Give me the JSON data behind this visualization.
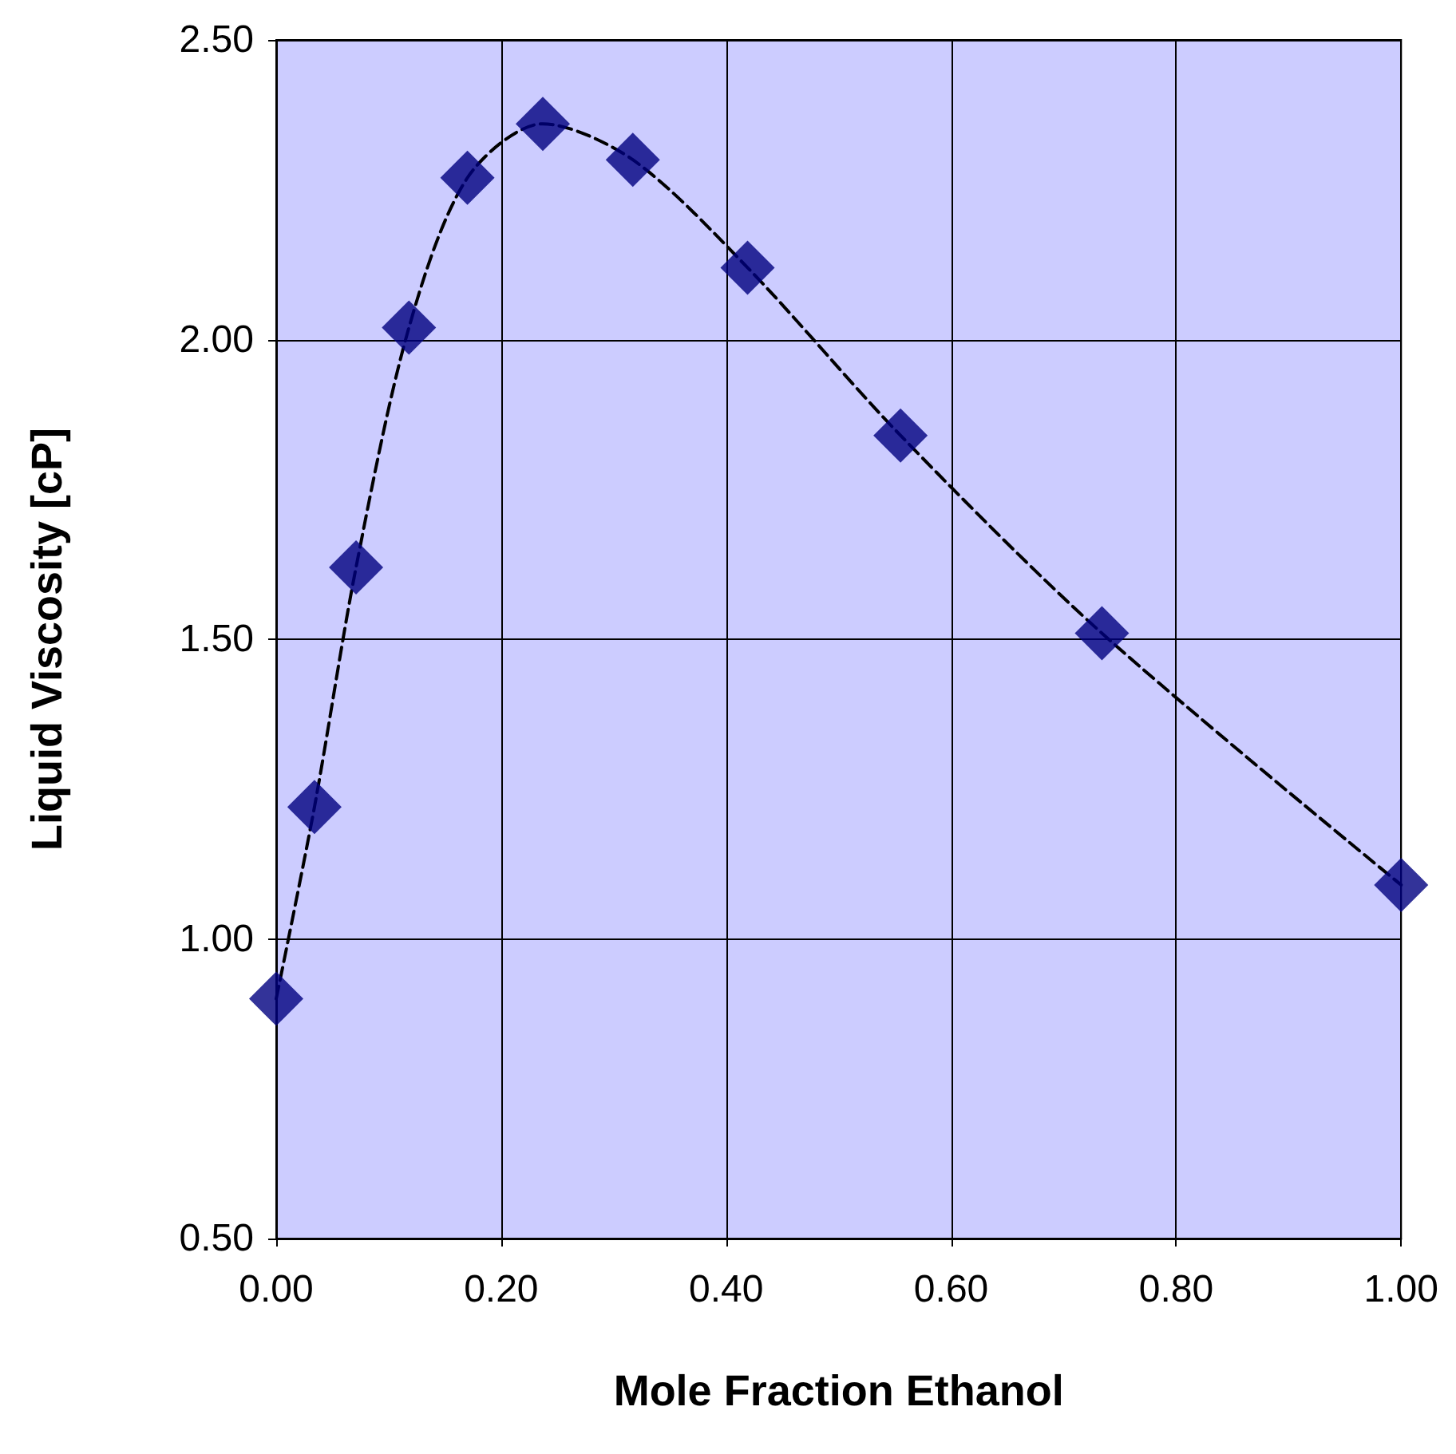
{
  "chart_data": {
    "type": "scatter",
    "xlabel": "Mole Fraction Ethanol",
    "ylabel": "Liquid Viscosity [cP]",
    "xlim": [
      0,
      1
    ],
    "xticks": [
      {
        "value": 0,
        "label": "0.00"
      },
      {
        "value": 0.2,
        "label": "0.20"
      },
      {
        "value": 0.4,
        "label": "0.40"
      },
      {
        "value": 0.6,
        "label": "0.60"
      },
      {
        "value": 0.8,
        "label": "0.80"
      },
      {
        "value": 1,
        "label": "1.00"
      }
    ],
    "ylim": [
      0.5,
      2.5
    ],
    "yticks": [
      {
        "value": 0.5,
        "label": "0.50"
      },
      {
        "value": 1,
        "label": "1.00"
      },
      {
        "value": 1.5,
        "label": "1.50"
      },
      {
        "value": 2,
        "label": "2.00"
      },
      {
        "value": 2.5,
        "label": "2.50"
      }
    ],
    "grid": true,
    "series": [
      {
        "marker": "diamond",
        "color": "#000080",
        "x": [
          0,
          0.034,
          0.071,
          0.118,
          0.17,
          0.237,
          0.317,
          0.419,
          0.555,
          0.734,
          1
        ],
        "values": [
          0.9,
          1.22,
          1.62,
          2.02,
          2.27,
          2.36,
          2.3,
          2.12,
          1.84,
          1.51,
          1.09
        ]
      },
      {
        "type": "line",
        "marker": "none",
        "line_style": "dashed",
        "color": "#000000",
        "x": [
          0,
          0.034,
          0.071,
          0.118,
          0.17,
          0.237,
          0.317,
          0.419,
          0.555,
          0.734,
          1
        ],
        "values": [
          0.9,
          1.22,
          1.62,
          2.02,
          2.27,
          2.36,
          2.3,
          2.12,
          1.84,
          1.51,
          1.09
        ]
      }
    ]
  }
}
